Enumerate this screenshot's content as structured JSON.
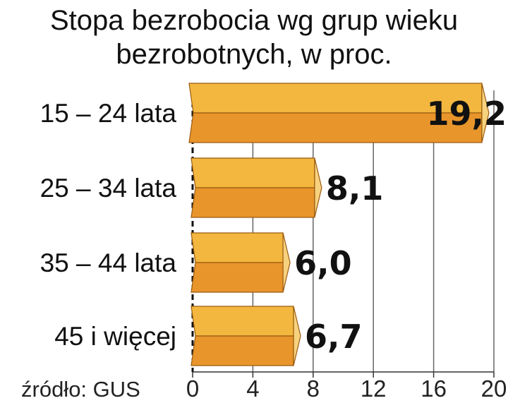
{
  "chart_data": {
    "type": "bar",
    "orientation": "horizontal",
    "title": "Stopa bezrobocia wg grup wieku bezrobotnych, w proc.",
    "title_lines": [
      "Stopa bezrobocia wg grup wieku",
      "bezrobotnych, w proc."
    ],
    "categories": [
      "15 – 24 lata",
      "25 – 34 lata",
      "35 – 44 lata",
      "45 i więcej"
    ],
    "values": [
      19.2,
      8.1,
      6.0,
      6.7
    ],
    "value_labels": [
      "19,2",
      "8,1",
      "6,0",
      "6,7"
    ],
    "xlim": [
      0,
      20
    ],
    "xticks": [
      0,
      4,
      8,
      12,
      16,
      20
    ],
    "grid": true,
    "legend": "none",
    "source": "źródło: GUS",
    "colors": {
      "bar_top": "#F3B73F",
      "bar_bottom": "#E8952B",
      "bar_end": "#F7D27E",
      "grid": "#666666"
    }
  }
}
